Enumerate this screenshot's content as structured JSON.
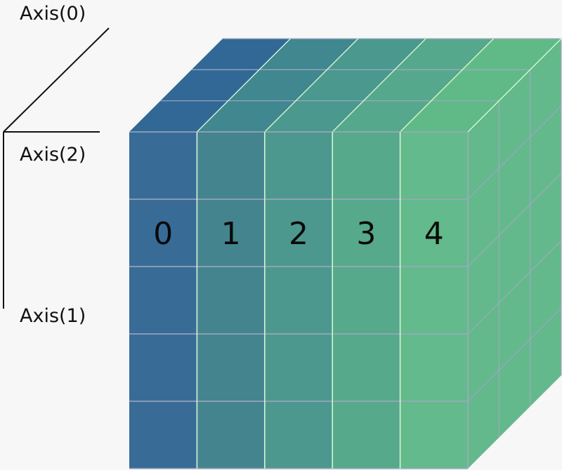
{
  "axes": {
    "axis0": "Axis(0)",
    "axis1": "Axis(1)",
    "axis2": "Axis(2)"
  },
  "cube": {
    "column_labels": [
      "0",
      "1",
      "2",
      "3",
      "4"
    ],
    "rows": 5,
    "depth_layers": 3,
    "front_colors": [
      "#386c97",
      "#44848f",
      "#4d988e",
      "#57a98c",
      "#63ba8c"
    ],
    "top_colors": [
      "#316896",
      "#408790",
      "#4a988e",
      "#56a88c",
      "#60ba88"
    ],
    "side_color": "#63b98b",
    "grid_color": "#a0a8c0",
    "highlight_color": "#d4f5d0"
  }
}
